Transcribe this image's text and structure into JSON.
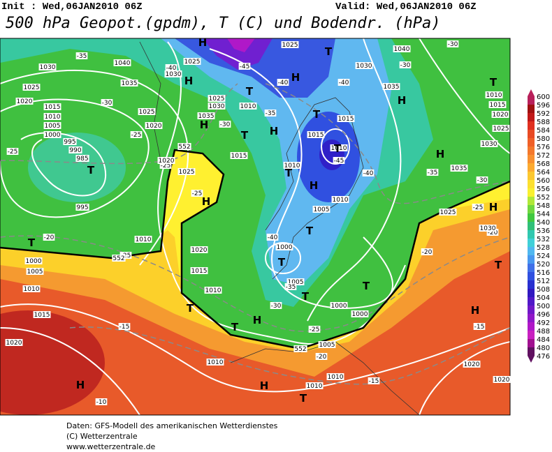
{
  "header": {
    "init": "Init : Wed,06JAN2010 06Z",
    "valid": "Valid: Wed,06JAN2010 06Z",
    "title": "500 hPa Geopot.(gpdm), T (C) und Bodendr. (hPa)"
  },
  "map": {
    "contour_labels": [
      "1025",
      "-35",
      "1030",
      "1040",
      "1025",
      "-40",
      "1030",
      "-45",
      "1035",
      "1025",
      "1020",
      "1015",
      "1010",
      "1005",
      "1000",
      "995",
      "990",
      "985",
      "-30",
      "1025",
      "1020",
      "-25",
      "-25",
      "995",
      "-25",
      "1020",
      "1025",
      "-25",
      "1010",
      "-20",
      "1000",
      "1005",
      "1010",
      "-25",
      "1015",
      "-15",
      "1020",
      "-10",
      "1020",
      "1015",
      "1010",
      "-30",
      "1005",
      "-35",
      "1000",
      "1000",
      "-25",
      "1005",
      "-20",
      "1010",
      "1010",
      "1010",
      "-15",
      "1020",
      "1020",
      "-15",
      "-20",
      "-20",
      "1030",
      "-25",
      "1025",
      "-30",
      "-35",
      "1035",
      "1030",
      "1035",
      "1040",
      "-30",
      "1010",
      "1015",
      "1020",
      "1025",
      "-30",
      "1030",
      "-40",
      "-40",
      "1025",
      "1030",
      "1035",
      "-30",
      "1010",
      "-35",
      "1015",
      "1015",
      "1015",
      "1010",
      "-45",
      "1010",
      "-40",
      "1010",
      "1005",
      "-40",
      "1000",
      "552",
      "552",
      "552"
    ],
    "centers": [
      "H",
      "H",
      "T",
      "H",
      "T",
      "T",
      "H",
      "T",
      "H",
      "T",
      "T",
      "H",
      "H",
      "T",
      "T",
      "T",
      "T",
      "T",
      "T",
      "H",
      "T",
      "T",
      "H",
      "T",
      "H",
      "H",
      "H",
      "T",
      "H",
      "H",
      "T"
    ]
  },
  "colorbar": {
    "levels": [
      600,
      596,
      592,
      588,
      584,
      580,
      576,
      572,
      568,
      564,
      560,
      556,
      552,
      548,
      544,
      540,
      536,
      532,
      528,
      524,
      520,
      516,
      512,
      508,
      504,
      500,
      496,
      492,
      488,
      484,
      480,
      476
    ],
    "colors": [
      "#b8205a",
      "#a01010",
      "#c01818",
      "#e03020",
      "#e84a24",
      "#f06028",
      "#f4782c",
      "#f89030",
      "#fcaa30",
      "#fcc830",
      "#fce030",
      "#f8f030",
      "#b0e838",
      "#70d840",
      "#40c840",
      "#30c078",
      "#30c8b0",
      "#40d0d8",
      "#50b8f0",
      "#4898f0",
      "#4070e8",
      "#3050e0",
      "#2830d0",
      "#3018c0",
      "#5018c8",
      "#7018c8",
      "#9018c8",
      "#b018c8",
      "#c820c0",
      "#a01090",
      "#601060"
    ]
  },
  "footer": [
    "Daten: GFS-Modell des amerikanischen Wetterdienstes",
    "(C) Wetterzentrale",
    "www.wetterzentrale.de"
  ]
}
